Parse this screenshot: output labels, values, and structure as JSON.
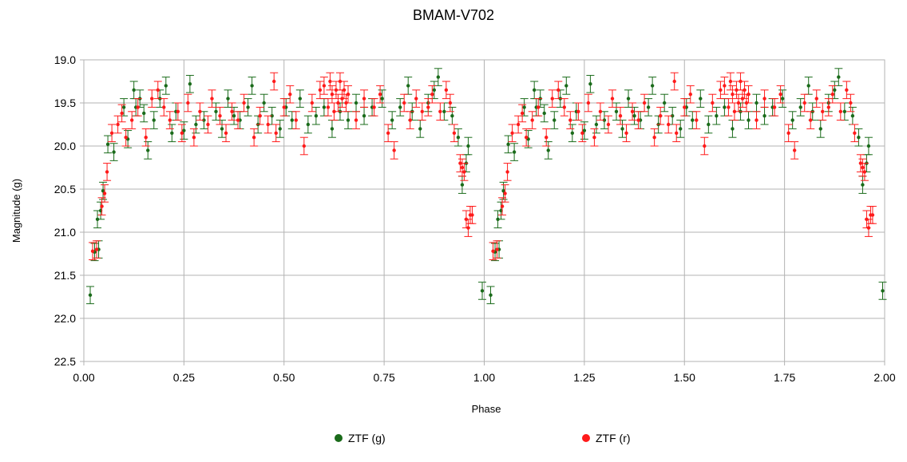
{
  "chart_data": {
    "type": "scatter",
    "title": "BMAM-V702",
    "xlabel": "Phase",
    "ylabel": "Magnitude (g)",
    "xlim": [
      0,
      2
    ],
    "ylim": [
      19.0,
      22.5
    ],
    "y_inverted": true,
    "grid": true,
    "legend_position": "bottom",
    "x_ticks": [
      "0.00",
      "0.25",
      "0.50",
      "0.75",
      "1.00",
      "1.25",
      "1.50",
      "1.75",
      "2.00"
    ],
    "y_ticks": [
      "19.0",
      "19.5",
      "20.0",
      "20.5",
      "21.0",
      "21.5",
      "22.0",
      "22.5"
    ],
    "colors": {
      "g": "#1a6b1a",
      "r": "#ff1a1a"
    },
    "error_bar": 0.1,
    "series": [
      {
        "name": "ZTF (g)",
        "color": "#1a6b1a",
        "x": [
          0.016,
          0.027,
          0.034,
          0.037,
          0.042,
          0.048,
          0.06,
          0.075,
          0.1,
          0.11,
          0.125,
          0.13,
          0.14,
          0.15,
          0.16,
          0.175,
          0.19,
          0.205,
          0.22,
          0.23,
          0.25,
          0.265,
          0.28,
          0.3,
          0.33,
          0.345,
          0.36,
          0.375,
          0.39,
          0.41,
          0.42,
          0.435,
          0.45,
          0.47,
          0.49,
          0.505,
          0.52,
          0.54,
          0.56,
          0.58,
          0.6,
          0.62,
          0.64,
          0.66,
          0.68,
          0.7,
          0.72,
          0.745,
          0.77,
          0.79,
          0.81,
          0.82,
          0.84,
          0.86,
          0.875,
          0.885,
          0.9,
          0.92,
          0.935,
          0.945,
          0.955,
          0.96,
          0.995
        ],
        "y": [
          21.73,
          21.23,
          20.85,
          21.2,
          20.75,
          20.52,
          19.98,
          20.07,
          19.55,
          19.92,
          19.35,
          19.55,
          19.45,
          19.62,
          20.05,
          19.7,
          19.45,
          19.3,
          19.85,
          19.6,
          19.82,
          19.28,
          19.75,
          19.7,
          19.6,
          19.8,
          19.45,
          19.65,
          19.7,
          19.55,
          19.3,
          19.75,
          19.5,
          19.65,
          19.8,
          19.55,
          19.7,
          19.45,
          19.75,
          19.65,
          19.55,
          19.8,
          19.6,
          19.7,
          19.5,
          19.65,
          19.55,
          19.45,
          19.7,
          19.55,
          19.3,
          19.6,
          19.8,
          19.5,
          19.35,
          19.2,
          19.6,
          19.65,
          19.9,
          20.45,
          20.2,
          20.0,
          21.68
        ]
      },
      {
        "name": "ZTF (r)",
        "color": "#ff1a1a",
        "x": [
          0.022,
          0.032,
          0.045,
          0.052,
          0.058,
          0.07,
          0.085,
          0.095,
          0.105,
          0.12,
          0.135,
          0.155,
          0.17,
          0.185,
          0.2,
          0.215,
          0.235,
          0.245,
          0.26,
          0.275,
          0.29,
          0.31,
          0.32,
          0.34,
          0.355,
          0.37,
          0.385,
          0.4,
          0.425,
          0.44,
          0.46,
          0.475,
          0.48,
          0.5,
          0.515,
          0.53,
          0.55,
          0.57,
          0.59,
          0.6,
          0.61,
          0.615,
          0.62,
          0.625,
          0.63,
          0.635,
          0.64,
          0.645,
          0.65,
          0.655,
          0.66,
          0.68,
          0.7,
          0.725,
          0.74,
          0.76,
          0.775,
          0.8,
          0.815,
          0.83,
          0.845,
          0.86,
          0.87,
          0.89,
          0.905,
          0.915,
          0.925,
          0.94,
          0.945,
          0.95,
          0.955,
          0.96,
          0.965,
          0.97
        ],
        "y": [
          21.22,
          21.2,
          20.7,
          20.55,
          20.3,
          19.85,
          19.75,
          19.62,
          19.9,
          19.7,
          19.55,
          19.9,
          19.45,
          19.35,
          19.55,
          19.7,
          19.6,
          19.85,
          19.5,
          19.9,
          19.6,
          19.75,
          19.45,
          19.65,
          19.85,
          19.6,
          19.7,
          19.5,
          19.9,
          19.65,
          19.75,
          19.25,
          19.85,
          19.55,
          19.4,
          19.7,
          20.0,
          19.5,
          19.35,
          19.3,
          19.55,
          19.25,
          19.4,
          19.6,
          19.35,
          19.5,
          19.25,
          19.45,
          19.35,
          19.5,
          19.4,
          19.7,
          19.45,
          19.55,
          19.4,
          19.85,
          20.05,
          19.5,
          19.7,
          19.45,
          19.6,
          19.55,
          19.4,
          19.6,
          19.35,
          19.5,
          19.85,
          20.2,
          20.25,
          20.3,
          20.85,
          20.95,
          20.8,
          20.8
        ]
      }
    ],
    "repeat_period": 1.0
  }
}
